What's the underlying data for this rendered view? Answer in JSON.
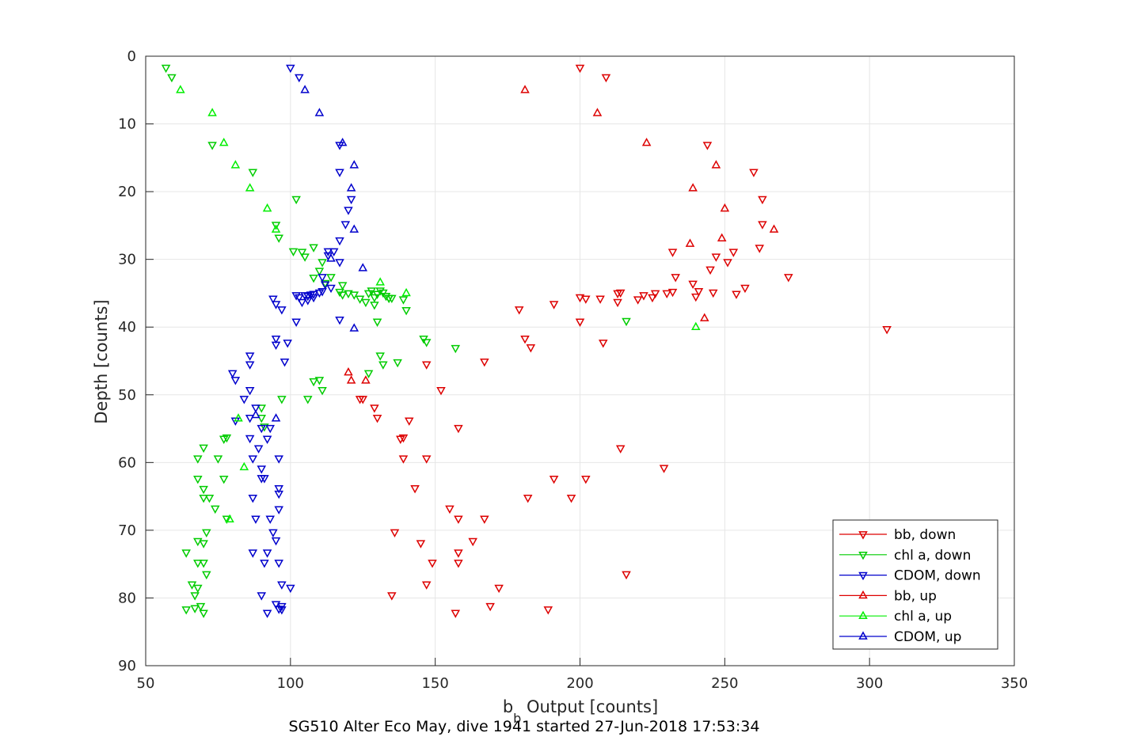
{
  "chart_data": {
    "type": "scatter",
    "title": "SG510 Alter Eco May, dive 1941 started 27-Jun-2018 17:53:34",
    "xlabel": {
      "main": "b",
      "sub": "b",
      "rest": " Output [counts]"
    },
    "ylabel": "Depth [counts]",
    "xlim": [
      50,
      350
    ],
    "ylim": [
      0,
      90
    ],
    "y_reversed": true,
    "grid": true,
    "legend_position": "bottom-right",
    "x_ticks": [
      "50",
      "100",
      "150",
      "200",
      "250",
      "300",
      "350"
    ],
    "y_ticks": [
      "0",
      "10",
      "20",
      "30",
      "40",
      "50",
      "60",
      "70",
      "80",
      "90"
    ],
    "colors": {
      "bb": "#dd0000",
      "chl": "#00cc00",
      "cdom": "#0000cc",
      "grid": "#e6e6e6",
      "axis": "#262626"
    },
    "series": [
      {
        "name": "bb, down",
        "color": "#dd0000",
        "marker": "triangle-down",
        "points": [
          [
            200,
            1.7
          ],
          [
            209,
            3.1
          ],
          [
            244,
            13.1
          ],
          [
            260,
            17.1
          ],
          [
            263,
            21.1
          ],
          [
            263,
            24.8
          ],
          [
            262,
            28.3
          ],
          [
            232,
            28.9
          ],
          [
            253,
            28.9
          ],
          [
            247,
            29.6
          ],
          [
            251,
            30.4
          ],
          [
            245,
            31.5
          ],
          [
            233,
            32.6
          ],
          [
            272,
            32.6
          ],
          [
            239,
            33.6
          ],
          [
            257,
            34.2
          ],
          [
            241,
            34.7
          ],
          [
            254,
            35.1
          ],
          [
            246,
            34.9
          ],
          [
            232,
            34.8
          ],
          [
            230,
            35.0
          ],
          [
            225,
            35.6
          ],
          [
            220,
            35.9
          ],
          [
            240,
            35.5
          ],
          [
            213,
            35.0
          ],
          [
            214,
            34.9
          ],
          [
            222,
            35.3
          ],
          [
            226,
            35.0
          ],
          [
            213,
            36.3
          ],
          [
            207,
            35.8
          ],
          [
            202,
            35.8
          ],
          [
            200,
            35.6
          ],
          [
            191,
            36.6
          ],
          [
            179,
            37.4
          ],
          [
            200,
            39.2
          ],
          [
            306,
            40.3
          ],
          [
            181,
            41.7
          ],
          [
            208,
            42.3
          ],
          [
            183,
            43.0
          ],
          [
            147,
            45.5
          ],
          [
            167,
            45.1
          ],
          [
            152,
            49.3
          ],
          [
            125,
            50.6
          ],
          [
            124,
            50.6
          ],
          [
            129,
            51.9
          ],
          [
            130,
            53.4
          ],
          [
            141,
            53.8
          ],
          [
            158,
            54.9
          ],
          [
            139,
            56.3
          ],
          [
            138,
            56.5
          ],
          [
            214,
            57.9
          ],
          [
            139,
            59.4
          ],
          [
            147,
            59.4
          ],
          [
            229,
            60.8
          ],
          [
            191,
            62.4
          ],
          [
            202,
            62.4
          ],
          [
            143,
            63.8
          ],
          [
            182,
            65.2
          ],
          [
            197,
            65.2
          ],
          [
            155,
            66.8
          ],
          [
            158,
            68.3
          ],
          [
            167,
            68.3
          ],
          [
            136,
            70.3
          ],
          [
            163,
            71.6
          ],
          [
            145,
            71.9
          ],
          [
            158,
            73.3
          ],
          [
            158,
            74.8
          ],
          [
            149,
            74.8
          ],
          [
            216,
            76.5
          ],
          [
            147,
            78.0
          ],
          [
            172,
            78.5
          ],
          [
            135,
            79.6
          ],
          [
            169,
            81.2
          ],
          [
            189,
            81.7
          ],
          [
            157,
            82.2
          ]
        ]
      },
      {
        "name": "chl a, down",
        "color": "#00cc00",
        "marker": "triangle-down",
        "points": [
          [
            57,
            1.7
          ],
          [
            59,
            3.1
          ],
          [
            73,
            13.1
          ],
          [
            87,
            17.1
          ],
          [
            102,
            21.1
          ],
          [
            95,
            24.9
          ],
          [
            96,
            26.8
          ],
          [
            108,
            28.2
          ],
          [
            101,
            28.8
          ],
          [
            104,
            28.9
          ],
          [
            105,
            29.6
          ],
          [
            111,
            30.4
          ],
          [
            110,
            31.7
          ],
          [
            108,
            32.7
          ],
          [
            114,
            32.6
          ],
          [
            112,
            33.5
          ],
          [
            118,
            33.8
          ],
          [
            127,
            35.0
          ],
          [
            128,
            34.6
          ],
          [
            131,
            34.6
          ],
          [
            129,
            35.6
          ],
          [
            133,
            35.4
          ],
          [
            134,
            35.7
          ],
          [
            135,
            35.7
          ],
          [
            132,
            34.9
          ],
          [
            130,
            35.1
          ],
          [
            120,
            35.0
          ],
          [
            117,
            34.8
          ],
          [
            118,
            35.2
          ],
          [
            122,
            35.2
          ],
          [
            124,
            35.8
          ],
          [
            126,
            36.3
          ],
          [
            129,
            36.7
          ],
          [
            134,
            35.7
          ],
          [
            139,
            35.9
          ],
          [
            140,
            37.5
          ],
          [
            130,
            39.2
          ],
          [
            216,
            39.1
          ],
          [
            146,
            41.7
          ],
          [
            147,
            42.2
          ],
          [
            157,
            43.1
          ],
          [
            131,
            44.2
          ],
          [
            132,
            45.5
          ],
          [
            137,
            45.2
          ],
          [
            127,
            46.8
          ],
          [
            110,
            47.8
          ],
          [
            108,
            48.0
          ],
          [
            111,
            49.3
          ],
          [
            97,
            50.6
          ],
          [
            106,
            50.6
          ],
          [
            90,
            51.9
          ],
          [
            90,
            53.4
          ],
          [
            91,
            54.7
          ],
          [
            78,
            56.3
          ],
          [
            77,
            56.5
          ],
          [
            70,
            57.8
          ],
          [
            68,
            59.4
          ],
          [
            75,
            59.4
          ],
          [
            68,
            62.4
          ],
          [
            77,
            62.4
          ],
          [
            70,
            63.9
          ],
          [
            70,
            65.2
          ],
          [
            72,
            65.2
          ],
          [
            74,
            66.8
          ],
          [
            78,
            68.3
          ],
          [
            71,
            70.3
          ],
          [
            68,
            71.6
          ],
          [
            70,
            71.9
          ],
          [
            64,
            73.3
          ],
          [
            68,
            74.8
          ],
          [
            70,
            74.8
          ],
          [
            71,
            76.5
          ],
          [
            66,
            78.0
          ],
          [
            68,
            78.5
          ],
          [
            67,
            79.6
          ],
          [
            69,
            81.2
          ],
          [
            67,
            81.5
          ],
          [
            64,
            81.7
          ],
          [
            70,
            82.2
          ]
        ]
      },
      {
        "name": "CDOM, down",
        "color": "#0000cc",
        "marker": "triangle-down",
        "points": [
          [
            100,
            1.7
          ],
          [
            103,
            3.1
          ],
          [
            117,
            13.1
          ],
          [
            117,
            17.1
          ],
          [
            121,
            21.1
          ],
          [
            120,
            22.7
          ],
          [
            119,
            24.8
          ],
          [
            117,
            27.2
          ],
          [
            115,
            28.8
          ],
          [
            113,
            28.8
          ],
          [
            113,
            29.4
          ],
          [
            117,
            30.4
          ],
          [
            111,
            32.6
          ],
          [
            112,
            33.7
          ],
          [
            114,
            34.2
          ],
          [
            111,
            34.7
          ],
          [
            108,
            35.1
          ],
          [
            110,
            34.9
          ],
          [
            107,
            35.2
          ],
          [
            105,
            35.3
          ],
          [
            103,
            35.6
          ],
          [
            102,
            35.3
          ],
          [
            106,
            35.4
          ],
          [
            108,
            35.6
          ],
          [
            106,
            36.0
          ],
          [
            104,
            36.3
          ],
          [
            94,
            35.8
          ],
          [
            95,
            36.6
          ],
          [
            97,
            37.4
          ],
          [
            102,
            39.2
          ],
          [
            117,
            38.9
          ],
          [
            95,
            41.7
          ],
          [
            95,
            42.6
          ],
          [
            99,
            42.3
          ],
          [
            98,
            45.1
          ],
          [
            86,
            44.2
          ],
          [
            86,
            45.5
          ],
          [
            80,
            46.8
          ],
          [
            81,
            47.8
          ],
          [
            86,
            49.3
          ],
          [
            84,
            50.6
          ],
          [
            88,
            51.9
          ],
          [
            86,
            53.4
          ],
          [
            81,
            53.8
          ],
          [
            90,
            54.9
          ],
          [
            93,
            54.9
          ],
          [
            86,
            56.4
          ],
          [
            92,
            56.5
          ],
          [
            89,
            57.9
          ],
          [
            87,
            59.4
          ],
          [
            96,
            59.4
          ],
          [
            90,
            60.9
          ],
          [
            90,
            62.3
          ],
          [
            91,
            62.3
          ],
          [
            96,
            63.8
          ],
          [
            96,
            64.6
          ],
          [
            87,
            65.2
          ],
          [
            96,
            66.9
          ],
          [
            93,
            68.3
          ],
          [
            88,
            68.3
          ],
          [
            94,
            70.3
          ],
          [
            95,
            71.5
          ],
          [
            87,
            73.3
          ],
          [
            92,
            73.3
          ],
          [
            96,
            74.8
          ],
          [
            91,
            74.8
          ],
          [
            97,
            78.0
          ],
          [
            90,
            79.6
          ],
          [
            100,
            78.5
          ],
          [
            95,
            80.9
          ],
          [
            97,
            81.2
          ],
          [
            96,
            81.6
          ],
          [
            97,
            81.7
          ],
          [
            92,
            82.2
          ]
        ]
      },
      {
        "name": "bb, up",
        "color": "#dd0000",
        "marker": "triangle-up",
        "points": [
          [
            181,
            5.0
          ],
          [
            206,
            8.4
          ],
          [
            223,
            12.8
          ],
          [
            247,
            16.1
          ],
          [
            239,
            19.5
          ],
          [
            250,
            22.5
          ],
          [
            267,
            25.6
          ],
          [
            249,
            26.9
          ],
          [
            238,
            27.7
          ],
          [
            243,
            38.7
          ],
          [
            120,
            46.7
          ],
          [
            121,
            47.9
          ],
          [
            126,
            47.9
          ]
        ]
      },
      {
        "name": "chl a, up",
        "color": "#00ee00",
        "marker": "triangle-up",
        "points": [
          [
            62,
            5.0
          ],
          [
            73,
            8.4
          ],
          [
            77,
            12.8
          ],
          [
            81,
            16.1
          ],
          [
            86,
            19.5
          ],
          [
            92,
            22.5
          ],
          [
            95,
            25.6
          ],
          [
            140,
            35.0
          ],
          [
            131,
            33.4
          ],
          [
            240,
            40.0
          ],
          [
            79,
            68.4
          ],
          [
            84,
            60.7
          ],
          [
            82,
            53.5
          ]
        ]
      },
      {
        "name": "CDOM, up",
        "color": "#0000cc",
        "marker": "triangle-up",
        "points": [
          [
            105,
            5.0
          ],
          [
            110,
            8.4
          ],
          [
            118,
            12.8
          ],
          [
            122,
            16.1
          ],
          [
            121,
            19.5
          ],
          [
            122,
            25.6
          ],
          [
            114,
            29.9
          ],
          [
            125,
            31.3
          ],
          [
            122,
            40.2
          ],
          [
            88,
            53.0
          ],
          [
            95,
            53.5
          ]
        ]
      }
    ]
  }
}
